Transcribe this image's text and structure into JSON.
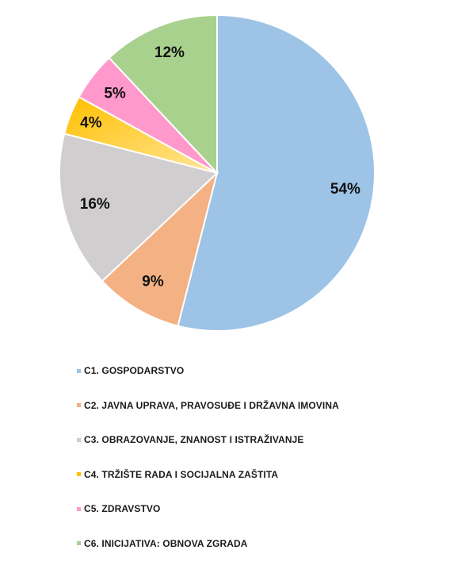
{
  "chart_data": {
    "type": "pie",
    "title": "",
    "slices": [
      {
        "label": "C1. GOSPODARSTVO",
        "value": 54,
        "value_label": "54%",
        "color": "#9DC3E6"
      },
      {
        "label": "C2. JAVNA UPRAVA, PRAVOSUĐE I DRŽAVNA IMOVINA",
        "value": 9,
        "value_label": "9%",
        "color": "#F4B183"
      },
      {
        "label": "C3. OBRAZOVANJE, ZNANOST I ISTRAŽIVANJE",
        "value": 16,
        "value_label": "16%",
        "color": "#D0CECE"
      },
      {
        "label": "C4. TRŽIŠTE RADA I SOCIJALNA ZAŠTITA",
        "value": 4,
        "value_label": "4%",
        "color": "#FFC000"
      },
      {
        "label": "C5. ZDRAVSTVO",
        "value": 5,
        "value_label": "5%",
        "color": "#FF99CC"
      },
      {
        "label": "C6. INICIJATIVA: OBNOVA ZGRADA",
        "value": 12,
        "value_label": "12%",
        "color": "#A9D18E"
      }
    ],
    "legend_position": "bottom"
  }
}
